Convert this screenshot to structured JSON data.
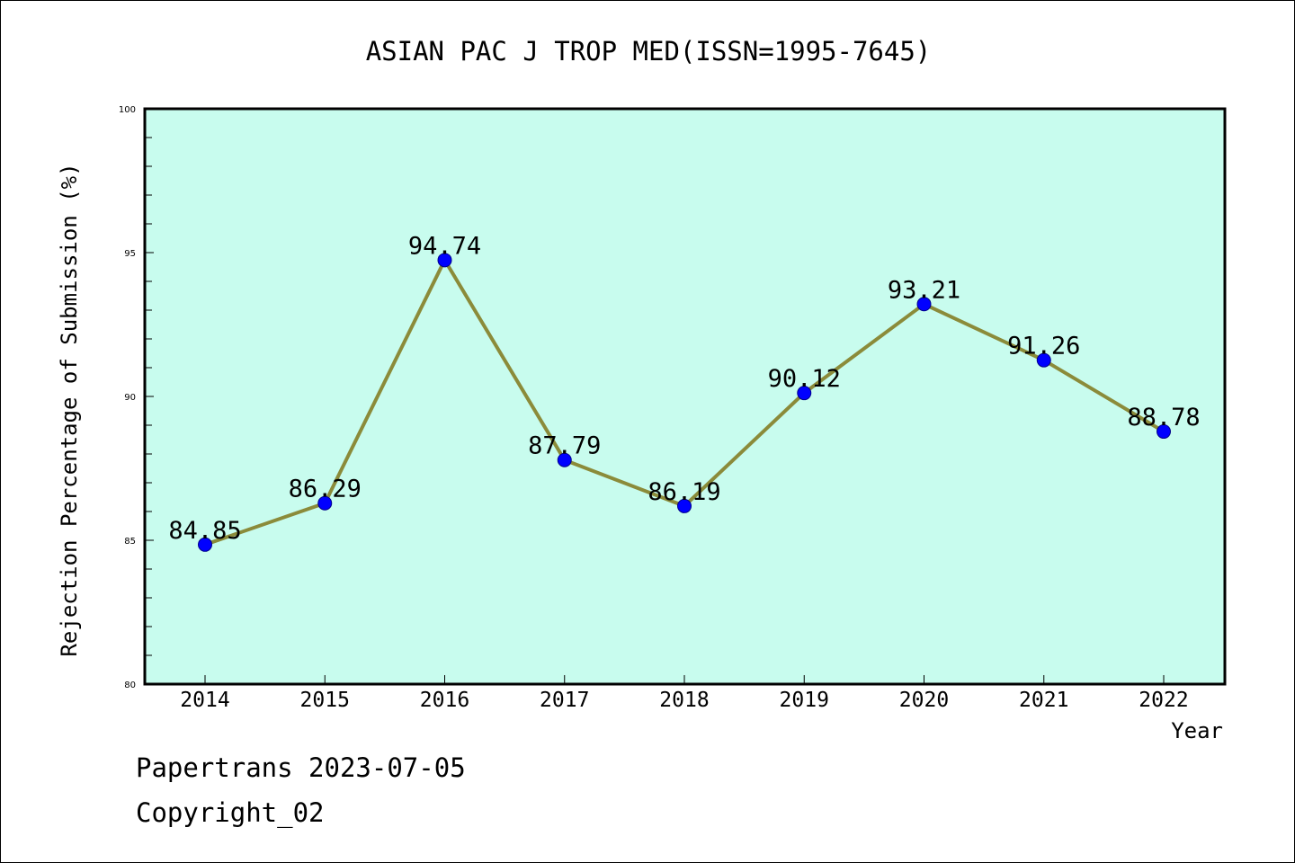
{
  "chart_data": {
    "type": "line",
    "title": "ASIAN PAC J TROP MED(ISSN=1995-7645)",
    "xlabel": "Year",
    "ylabel": "Rejection Percentage of Submission (%)",
    "categories": [
      "2014",
      "2015",
      "2016",
      "2017",
      "2018",
      "2019",
      "2020",
      "2021",
      "2022"
    ],
    "values": [
      84.85,
      86.29,
      94.74,
      87.79,
      86.19,
      90.12,
      93.21,
      91.26,
      88.78
    ],
    "data_labels": [
      "84.85",
      "86.29",
      "94.74",
      "87.79",
      "86.19",
      "90.12",
      "93.21",
      "91.26",
      "88.78"
    ],
    "ylim": [
      80,
      100
    ],
    "y_ticks": [
      "80",
      "85",
      "90",
      "95",
      "100"
    ],
    "grid": false,
    "colors": {
      "plot_background": "#c8fcee",
      "line": "#8b8b3a",
      "marker_fill": "#0000ff",
      "marker_edge": "#00008b"
    }
  },
  "footer": {
    "line1": "Papertrans 2023-07-05",
    "line2": "Copyright_02"
  }
}
